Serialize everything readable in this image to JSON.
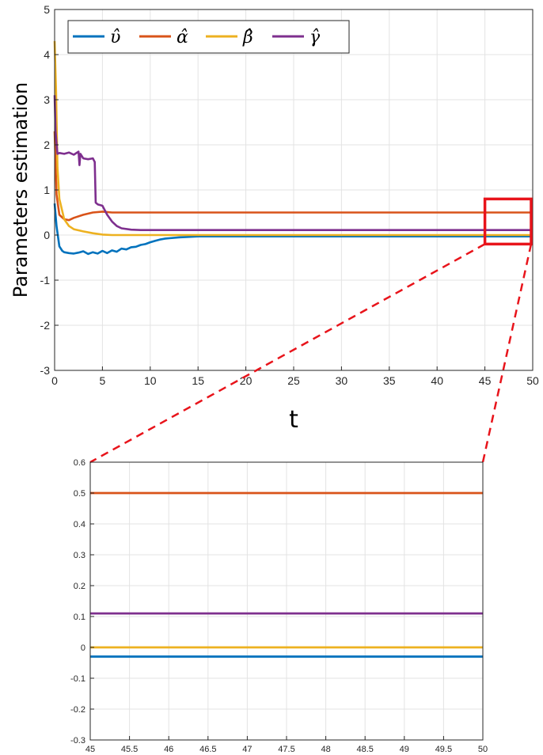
{
  "chart_data": [
    {
      "type": "line",
      "xlabel": "t",
      "ylabel": "Parameters estimation",
      "xlim": [
        0,
        50
      ],
      "ylim": [
        -3,
        5
      ],
      "xticks": [
        "0",
        "5",
        "10",
        "15",
        "20",
        "25",
        "30",
        "35",
        "40",
        "45",
        "50"
      ],
      "yticks": [
        "-3",
        "-2",
        "-1",
        "0",
        "1",
        "2",
        "3",
        "4",
        "5"
      ],
      "grid": true,
      "legend_position": "top-left",
      "legend": [
        "υ̂",
        "α̂",
        "β̂",
        "γ̂"
      ],
      "zoom_box": {
        "x": [
          45,
          50
        ],
        "y": [
          -0.2,
          0.8
        ]
      },
      "series": [
        {
          "name": "υ̂",
          "color": "#0072BD",
          "x": [
            0,
            0.2,
            0.5,
            0.8,
            1,
            1.5,
            2,
            2.5,
            3,
            3.5,
            4,
            4.5,
            5,
            5.5,
            6,
            6.5,
            7,
            7.5,
            8,
            8.5,
            9,
            9.5,
            10,
            10.5,
            11,
            11.5,
            12,
            13,
            14,
            15,
            20,
            30,
            40,
            50
          ],
          "y": [
            0.7,
            0.2,
            -0.25,
            -0.35,
            -0.38,
            -0.4,
            -0.41,
            -0.39,
            -0.36,
            -0.42,
            -0.38,
            -0.41,
            -0.35,
            -0.4,
            -0.34,
            -0.37,
            -0.3,
            -0.32,
            -0.27,
            -0.26,
            -0.22,
            -0.2,
            -0.16,
            -0.13,
            -0.1,
            -0.08,
            -0.07,
            -0.05,
            -0.04,
            -0.03,
            -0.03,
            -0.03,
            -0.03,
            -0.03
          ]
        },
        {
          "name": "α̂",
          "color": "#D95319",
          "x": [
            0,
            0.2,
            0.5,
            1,
            1.5,
            2,
            3,
            4,
            5,
            6,
            10,
            20,
            30,
            40,
            50
          ],
          "y": [
            2.3,
            0.9,
            0.45,
            0.35,
            0.33,
            0.38,
            0.45,
            0.5,
            0.52,
            0.5,
            0.5,
            0.5,
            0.5,
            0.5,
            0.5
          ]
        },
        {
          "name": "β̂",
          "color": "#EDB120",
          "x": [
            0,
            0.15,
            0.3,
            0.5,
            1,
            1.5,
            2,
            3,
            4,
            5,
            6,
            8,
            10,
            20,
            30,
            40,
            50
          ],
          "y": [
            4.3,
            3.2,
            1.5,
            0.8,
            0.35,
            0.2,
            0.13,
            0.08,
            0.04,
            0.01,
            0.0,
            0.0,
            0.0,
            0.0,
            0.0,
            0.0,
            0.0
          ]
        },
        {
          "name": "γ̂",
          "color": "#7E2F8E",
          "x": [
            0,
            0.1,
            0.3,
            0.5,
            1,
            1.5,
            2,
            2.5,
            2.6,
            2.7,
            3,
            3.5,
            4,
            4.2,
            4.3,
            4.5,
            5,
            5.5,
            6,
            6.5,
            7,
            8,
            9,
            10,
            15,
            20,
            30,
            40,
            50
          ],
          "y": [
            3.1,
            2.3,
            1.8,
            1.82,
            1.8,
            1.83,
            1.78,
            1.85,
            1.55,
            1.8,
            1.7,
            1.68,
            1.7,
            1.62,
            0.72,
            0.68,
            0.65,
            0.45,
            0.3,
            0.2,
            0.15,
            0.12,
            0.11,
            0.11,
            0.11,
            0.11,
            0.11,
            0.11,
            0.11
          ]
        }
      ]
    },
    {
      "type": "line",
      "xlim": [
        45,
        50
      ],
      "ylim": [
        -0.3,
        0.6
      ],
      "xticks": [
        "45",
        "45.5",
        "46",
        "46.5",
        "47",
        "47.5",
        "48",
        "48.5",
        "49",
        "49.5",
        "50"
      ],
      "yticks": [
        "-0.3",
        "-0.2",
        "-0.1",
        "0",
        "0.1",
        "0.2",
        "0.3",
        "0.4",
        "0.5",
        "0.6"
      ],
      "grid": true,
      "series": [
        {
          "color": "#D95319",
          "x": [
            45,
            50
          ],
          "y": [
            0.5,
            0.5
          ]
        },
        {
          "color": "#7E2F8E",
          "x": [
            45,
            50
          ],
          "y": [
            0.11,
            0.11
          ]
        },
        {
          "color": "#EDB120",
          "x": [
            45,
            50
          ],
          "y": [
            0.0,
            0.0
          ]
        },
        {
          "color": "#0072BD",
          "x": [
            45,
            50
          ],
          "y": [
            -0.03,
            -0.03
          ]
        }
      ]
    }
  ]
}
